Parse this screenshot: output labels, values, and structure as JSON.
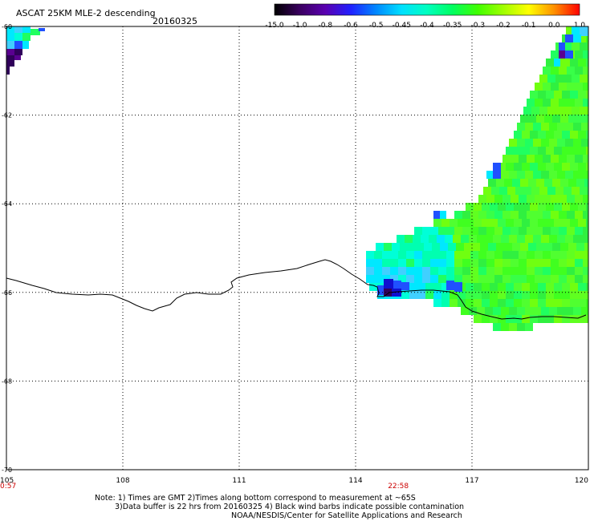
{
  "title": "ASCAT 25KM MLE-2 descending",
  "date": "20160325",
  "colorbar": {
    "labels": [
      "-15.0",
      "-1.0",
      "-0.8",
      "-0.6",
      "-0.5",
      "-0.45",
      "-0.4",
      "-0.35",
      "-0.3",
      "-0.2",
      "-0.1",
      "0.0",
      "1.0"
    ],
    "colors": [
      "#000000",
      "#3a0060",
      "#5a00b0",
      "#2020ff",
      "#0088ff",
      "#00e0ff",
      "#00ffc0",
      "#00ff60",
      "#40ff00",
      "#a0ff00",
      "#ffff00",
      "#ff9000",
      "#ff0000"
    ]
  },
  "axes": {
    "lon_labels": [
      "105",
      "108",
      "111",
      "114",
      "117",
      "120"
    ],
    "lon_values": [
      105,
      108,
      111,
      114,
      117,
      120
    ],
    "lat_labels": [
      "-60",
      "-62",
      "-64",
      "-66",
      "-68",
      "-70"
    ],
    "lat_values": [
      -60,
      -62,
      -64,
      -66,
      -68,
      -70
    ],
    "lon_range": [
      105,
      120
    ],
    "lat_range": [
      -60,
      -70
    ]
  },
  "times": [
    {
      "label": "0:57",
      "lon": 105.1
    },
    {
      "label": "22:58",
      "lon": 115.1
    }
  ],
  "notes": {
    "line1": "Note: 1) Times are GMT 2)Times along bottom correspond to measurement at ~65S",
    "line2": "3)Data buffer is 22 hrs from 20160325 4) Black wind barbs indicate possible contamination",
    "line3": "NOAA/NESDIS/Center for Satellite Applications and Research"
  },
  "colors": {
    "grid": "#000000",
    "time_label": "#cc0000",
    "coast": "#000000"
  }
}
